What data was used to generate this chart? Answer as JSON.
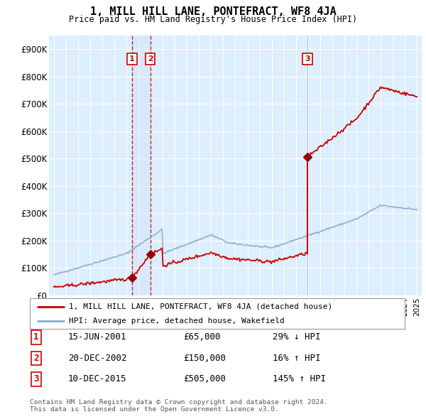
{
  "title": "1, MILL HILL LANE, PONTEFRACT, WF8 4JA",
  "subtitle": "Price paid vs. HM Land Registry's House Price Index (HPI)",
  "ylabel_ticks": [
    "£0",
    "£100K",
    "£200K",
    "£300K",
    "£400K",
    "£500K",
    "£600K",
    "£700K",
    "£800K",
    "£900K"
  ],
  "ytick_values": [
    0,
    100000,
    200000,
    300000,
    400000,
    500000,
    600000,
    700000,
    800000,
    900000
  ],
  "ylim": [
    0,
    950000
  ],
  "xlim_start": 1994.6,
  "xlim_end": 2025.4,
  "background_color": "#ffffff",
  "plot_bg_color": "#ddeeff",
  "grid_color": "#ffffff",
  "transactions": [
    {
      "num": 1,
      "year": 2001.46,
      "price": 65000,
      "label": "1",
      "date": "15-JUN-2001",
      "pct": "29%",
      "dir": "↓"
    },
    {
      "num": 2,
      "year": 2002.97,
      "price": 150000,
      "label": "2",
      "date": "20-DEC-2002",
      "pct": "16%",
      "dir": "↑"
    },
    {
      "num": 3,
      "year": 2015.95,
      "price": 505000,
      "label": "3",
      "date": "10-DEC-2015",
      "pct": "145%",
      "dir": "↑"
    }
  ],
  "legend_entries": [
    {
      "label": "1, MILL HILL LANE, PONTEFRACT, WF8 4JA (detached house)",
      "color": "#cc0000",
      "lw": 2
    },
    {
      "label": "HPI: Average price, detached house, Wakefield",
      "color": "#88aacc",
      "lw": 2
    }
  ],
  "table_rows": [
    {
      "num": "1",
      "date": "15-JUN-2001",
      "price": "£65,000",
      "pct": "29% ↓ HPI"
    },
    {
      "num": "2",
      "date": "20-DEC-2002",
      "price": "£150,000",
      "pct": "16% ↑ HPI"
    },
    {
      "num": "3",
      "date": "10-DEC-2015",
      "price": "£505,000",
      "pct": "145% ↑ HPI"
    }
  ],
  "footer": "Contains HM Land Registry data © Crown copyright and database right 2024.\nThis data is licensed under the Open Government Licence v3.0.",
  "dashed_line_color": "#cc0000",
  "solid_line_color": "#aaaaaa",
  "marker_color": "#990000",
  "label_box_color": "#cc0000",
  "shade_color": "#ccddf0"
}
